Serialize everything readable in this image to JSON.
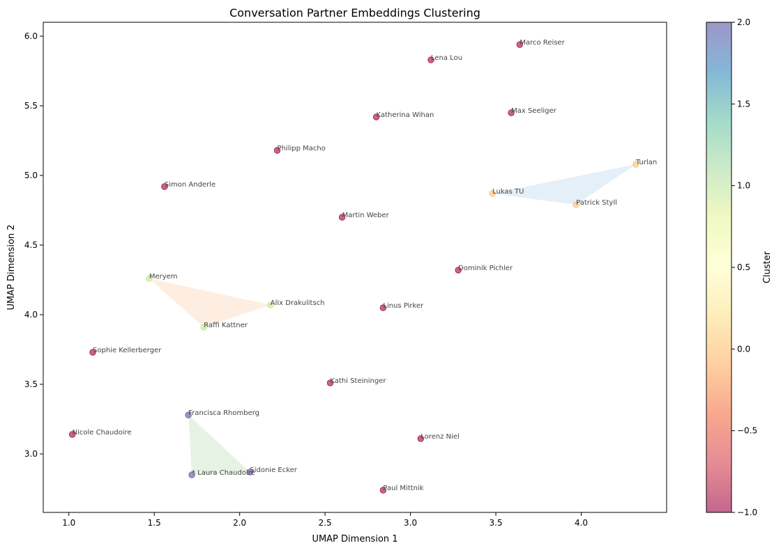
{
  "chart_data": {
    "type": "scatter",
    "title": "Conversation Partner Embeddings Clustering",
    "xlabel": "UMAP Dimension 1",
    "ylabel": "UMAP Dimension 2",
    "xlim": [
      0.85,
      4.5
    ],
    "ylim": [
      2.58,
      6.1
    ],
    "xticks": [
      1.0,
      1.5,
      2.0,
      2.5,
      3.0,
      3.5,
      4.0
    ],
    "yticks": [
      3.0,
      3.5,
      4.0,
      4.5,
      5.0,
      5.5,
      6.0
    ],
    "colorbar": {
      "label": "Cluster",
      "range": [
        -1.0,
        2.0
      ],
      "ticks": [
        -1.0,
        -0.5,
        0.0,
        0.5,
        1.0,
        1.5,
        2.0
      ],
      "colormap": "Spectral"
    },
    "grid": false,
    "points": [
      {
        "label": "Marco Reiser",
        "x": 3.64,
        "y": 5.94,
        "cluster": -1
      },
      {
        "label": "Lena Lou",
        "x": 3.12,
        "y": 5.83,
        "cluster": -1
      },
      {
        "label": "Katherina Wihan",
        "x": 2.8,
        "y": 5.42,
        "cluster": -1
      },
      {
        "label": "Max Seeliger",
        "x": 3.59,
        "y": 5.45,
        "cluster": -1
      },
      {
        "label": "Philipp Macho",
        "x": 2.22,
        "y": 5.18,
        "cluster": -1
      },
      {
        "label": "Turlan",
        "x": 4.32,
        "y": 5.08,
        "cluster": 0
      },
      {
        "label": "Simon Anderle",
        "x": 1.56,
        "y": 4.92,
        "cluster": -1
      },
      {
        "label": "Lukas TU",
        "x": 3.48,
        "y": 4.87,
        "cluster": 0
      },
      {
        "label": "Patrick Styll",
        "x": 3.97,
        "y": 4.79,
        "cluster": 0
      },
      {
        "label": "Martin Weber",
        "x": 2.6,
        "y": 4.7,
        "cluster": -1
      },
      {
        "label": "Dominik Pichler",
        "x": 3.28,
        "y": 4.32,
        "cluster": -1
      },
      {
        "label": "Meryem",
        "x": 1.47,
        "y": 4.26,
        "cluster": 1
      },
      {
        "label": "Alix Drakulitsch",
        "x": 2.18,
        "y": 4.07,
        "cluster": 1
      },
      {
        "label": "Linus Pirker",
        "x": 2.84,
        "y": 4.05,
        "cluster": -1
      },
      {
        "label": "Raffi Kattner",
        "x": 1.79,
        "y": 3.91,
        "cluster": 1
      },
      {
        "label": "Sophie Kellerberger",
        "x": 1.14,
        "y": 3.73,
        "cluster": -1
      },
      {
        "label": "Kathi Steininger",
        "x": 2.53,
        "y": 3.51,
        "cluster": -1
      },
      {
        "label": "Francisca Rhomberg",
        "x": 1.7,
        "y": 3.28,
        "cluster": 2
      },
      {
        "label": "Nicole Chaudoire",
        "x": 1.02,
        "y": 3.14,
        "cluster": -1
      },
      {
        "label": "Lorenz Niel",
        "x": 3.06,
        "y": 3.11,
        "cluster": -1
      },
      {
        "label": "Sidonie Ecker",
        "x": 2.06,
        "y": 2.87,
        "cluster": 2
      },
      {
        "label": "* Laura Chaudoire",
        "x": 1.72,
        "y": 2.85,
        "cluster": 2
      },
      {
        "label": "Paul Mittnik",
        "x": 2.84,
        "y": 2.74,
        "cluster": -1
      }
    ],
    "hulls": [
      {
        "cluster": 0,
        "color": "#c6dbef"
      },
      {
        "cluster": 1,
        "color": "#fdd9bd"
      },
      {
        "cluster": 2,
        "color": "#c7e5c3"
      }
    ],
    "cluster_colors": {
      "-1": "#9e0142",
      "0": "#fdbf6f",
      "1": "#bce98f",
      "2": "#5e4fa2"
    }
  }
}
